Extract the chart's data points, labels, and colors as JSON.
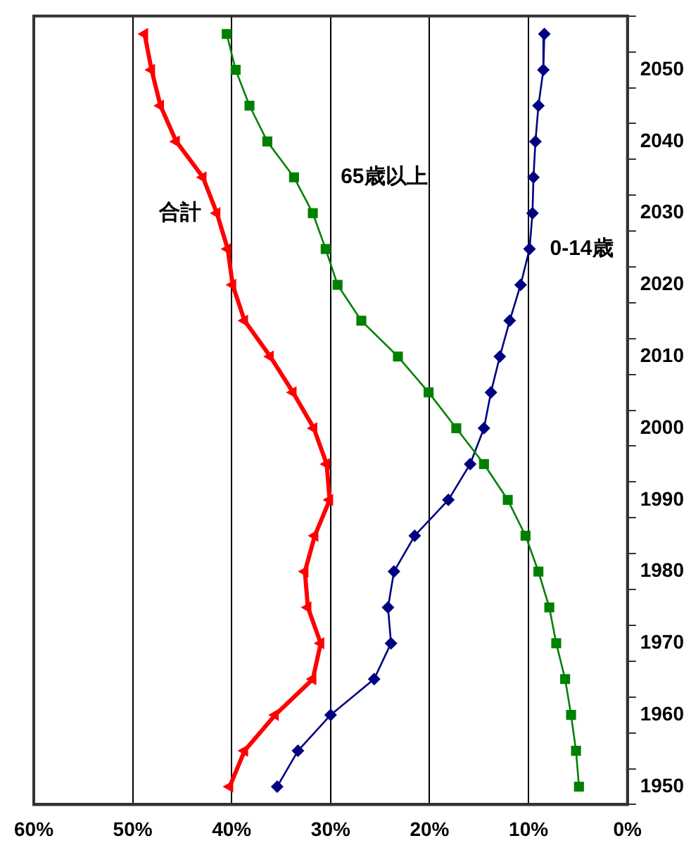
{
  "chart_data": {
    "type": "line",
    "orientation": "horizontal",
    "categories": [
      null,
      "2050",
      null,
      "2040",
      null,
      "2030",
      null,
      "2020",
      null,
      "2010",
      null,
      "2000",
      null,
      "1990",
      null,
      "1980",
      null,
      "1970",
      null,
      "1960",
      null,
      "1950"
    ],
    "series": [
      {
        "name": "合計",
        "color": "#ff0000",
        "marker": "triangle",
        "values": [
          48.8,
          48.1,
          47.2,
          45.6,
          42.9,
          41.5,
          40.4,
          39.9,
          38.7,
          36.1,
          33.8,
          31.7,
          30.4,
          30.1,
          31.6,
          32.6,
          32.3,
          31.0,
          31.8,
          35.6,
          38.7,
          40.2
        ]
      },
      {
        "name": "65歳以上",
        "color": "#008000",
        "marker": "square",
        "values": [
          40.5,
          39.6,
          38.2,
          36.4,
          33.7,
          31.8,
          30.5,
          29.3,
          26.9,
          23.2,
          20.1,
          17.3,
          14.5,
          12.1,
          10.3,
          9.0,
          7.9,
          7.2,
          6.3,
          5.7,
          5.2,
          4.9
        ]
      },
      {
        "name": "0-14歳",
        "color": "#000080",
        "marker": "diamond",
        "values": [
          8.4,
          8.5,
          9.0,
          9.3,
          9.5,
          9.6,
          9.9,
          10.8,
          11.9,
          12.9,
          13.8,
          14.5,
          15.9,
          18.1,
          21.5,
          23.6,
          24.2,
          23.9,
          25.6,
          30.0,
          33.3,
          35.4
        ]
      }
    ],
    "xlim": [
      60,
      0
    ],
    "xticks": [
      {
        "value": 60,
        "label": "60%"
      },
      {
        "value": 50,
        "label": "50%"
      },
      {
        "value": 40,
        "label": "40%"
      },
      {
        "value": 30,
        "label": "30%"
      },
      {
        "value": 20,
        "label": "20%"
      },
      {
        "value": 10,
        "label": "10%"
      },
      {
        "value": 0,
        "label": "0%"
      }
    ],
    "grid": "x",
    "legend": false
  }
}
